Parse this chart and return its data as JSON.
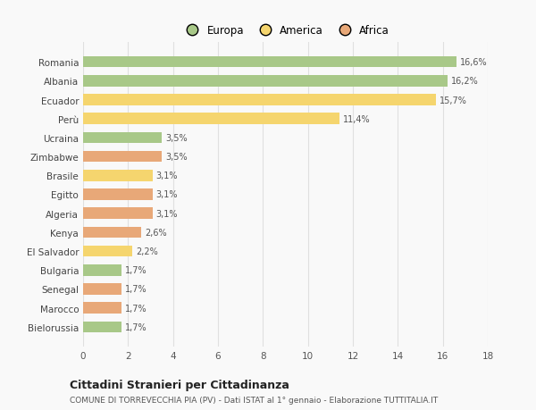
{
  "categories": [
    "Romania",
    "Albania",
    "Ecuador",
    "Perù",
    "Ucraina",
    "Zimbabwe",
    "Brasile",
    "Egitto",
    "Algeria",
    "Kenya",
    "El Salvador",
    "Bulgaria",
    "Senegal",
    "Marocco",
    "Bielorussia"
  ],
  "values": [
    16.6,
    16.2,
    15.7,
    11.4,
    3.5,
    3.5,
    3.1,
    3.1,
    3.1,
    2.6,
    2.2,
    1.7,
    1.7,
    1.7,
    1.7
  ],
  "labels": [
    "16,6%",
    "16,2%",
    "15,7%",
    "11,4%",
    "3,5%",
    "3,5%",
    "3,1%",
    "3,1%",
    "3,1%",
    "2,6%",
    "2,2%",
    "1,7%",
    "1,7%",
    "1,7%",
    "1,7%"
  ],
  "colors": [
    "#a8c888",
    "#a8c888",
    "#f5d56e",
    "#f5d56e",
    "#a8c888",
    "#e8a878",
    "#f5d56e",
    "#e8a878",
    "#e8a878",
    "#e8a878",
    "#f5d56e",
    "#a8c888",
    "#e8a878",
    "#e8a878",
    "#a8c888"
  ],
  "legend": [
    {
      "label": "Europa",
      "color": "#a8c888"
    },
    {
      "label": "America",
      "color": "#f5d56e"
    },
    {
      "label": "Africa",
      "color": "#e8a878"
    }
  ],
  "title": "Cittadini Stranieri per Cittadinanza",
  "subtitle": "COMUNE DI TORREVECCHIA PIA (PV) - Dati ISTAT al 1° gennaio - Elaborazione TUTTITALIA.IT",
  "xlim": [
    0,
    18
  ],
  "xticks": [
    0,
    2,
    4,
    6,
    8,
    10,
    12,
    14,
    16,
    18
  ],
  "background_color": "#f9f9f9",
  "grid_color": "#e0e0e0"
}
